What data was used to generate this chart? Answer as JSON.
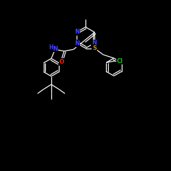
{
  "background_color": "#000000",
  "atom_colors": {
    "N": "#4444ff",
    "S": "#cc8800",
    "O": "#ff2200",
    "Cl": "#00cc00",
    "C": "#ffffff",
    "H": "#4444ff"
  },
  "bond_color": "#ffffff",
  "figsize": [
    2.5,
    2.5
  ],
  "dpi": 100,
  "lw": 0.9,
  "fontsize": 5.5
}
